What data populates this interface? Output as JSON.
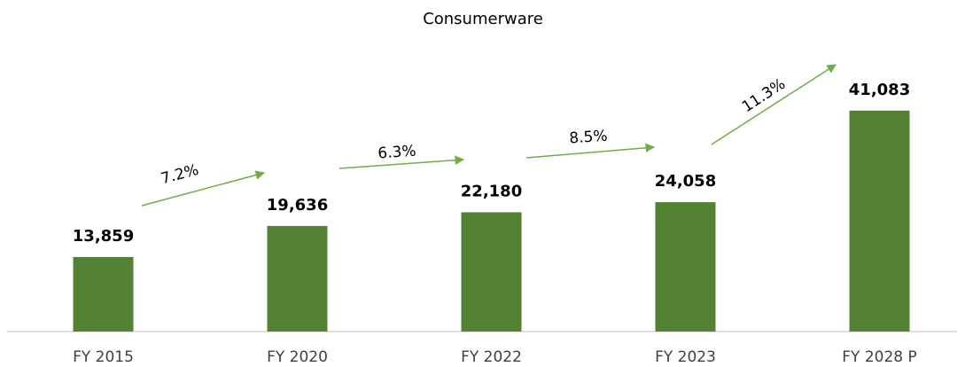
{
  "chart_data": {
    "type": "bar",
    "title": "Consumerware",
    "categories": [
      "FY 2015",
      "FY 2020",
      "FY 2022",
      "FY 2023",
      "FY 2028 P"
    ],
    "values": [
      13859,
      19636,
      22180,
      24058,
      41083
    ],
    "value_labels": [
      "13,859",
      "19,636",
      "22,180",
      "24,058",
      "41,083"
    ],
    "color": "#548235",
    "ylim": [
      0,
      45000
    ],
    "annotations": [
      "7.2%",
      "6.3%",
      "8.5%",
      "11.3%"
    ],
    "annotation_color": "#70ad47"
  }
}
